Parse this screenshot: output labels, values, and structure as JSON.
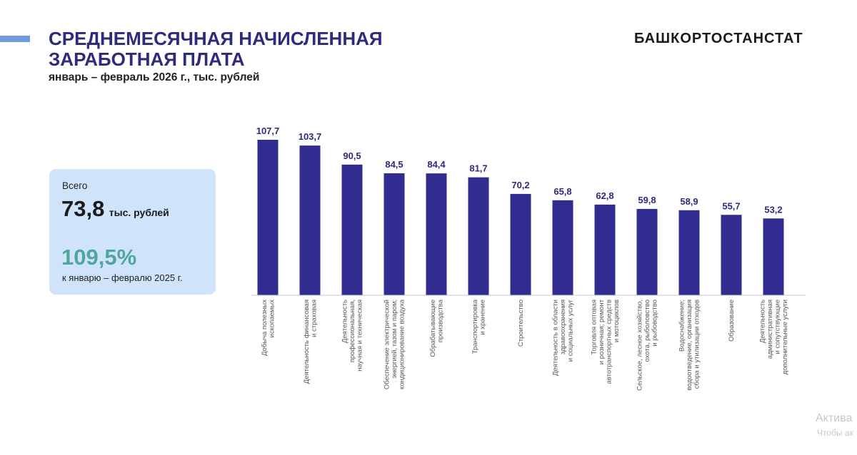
{
  "header": {
    "title_line1": "СРЕДНЕМЕСЯЧНАЯ НАЧИСЛЕННАЯ",
    "title_line2": "ЗАРАБОТНАЯ ПЛАТА",
    "subtitle": "январь – февраль 2026 г., тыс. рублей",
    "brand": "БАШКОРТОСТАНСТАТ"
  },
  "summary": {
    "label": "Всего",
    "value": "73,8",
    "unit": "тыс. рублей",
    "percent": "109,5%",
    "comparison": "к январю – февралю 2025 г."
  },
  "chart_data": {
    "type": "bar",
    "title": "",
    "xlabel": "",
    "ylabel": "",
    "ylim": [
      0,
      110
    ],
    "grid": false,
    "bar_color": "#312c8f",
    "label_color": "#2e2a7c",
    "categories": [
      [
        "Добыча полезных",
        "ископаемых"
      ],
      [
        "Деятельность финансовая",
        "и страховая"
      ],
      [
        "Деятельность",
        "профессиональная,",
        "научная и техническая"
      ],
      [
        "Обеспечение электрической",
        "энергией, газом и паром;",
        "кондиционирование воздуха"
      ],
      [
        "Обрабатывающие",
        "производства"
      ],
      [
        "Транспортировка",
        "и хранение"
      ],
      [
        "Строительство"
      ],
      [
        "Деятельность в области",
        "здравоохранения",
        "и социальных услуг"
      ],
      [
        "Торговля оптовая",
        "и розничная; ремонт",
        "автотранспортных средств",
        "и мотоциклов"
      ],
      [
        "Сельское, лесное хозяйство,",
        "охота, рыболовство",
        "и рыбоводство"
      ],
      [
        "Водоснабжение;",
        "водоотведение, организация",
        "сбора и утилизации отходов"
      ],
      [
        "Образование"
      ],
      [
        "Деятельность",
        "административная",
        "и сопутствующие",
        "дополнительные услуги"
      ]
    ],
    "values": [
      107.7,
      103.7,
      90.5,
      84.5,
      84.4,
      81.7,
      70.2,
      65.8,
      62.8,
      59.8,
      58.9,
      55.7,
      53.2
    ],
    "value_labels": [
      "107,7",
      "103,7",
      "90,5",
      "84,5",
      "84,4",
      "81,7",
      "70,2",
      "65,8",
      "62,8",
      "59,8",
      "58,9",
      "55,7",
      "53,2"
    ]
  },
  "watermark": {
    "line1": "Актива",
    "line2": "Чтобы ак"
  }
}
